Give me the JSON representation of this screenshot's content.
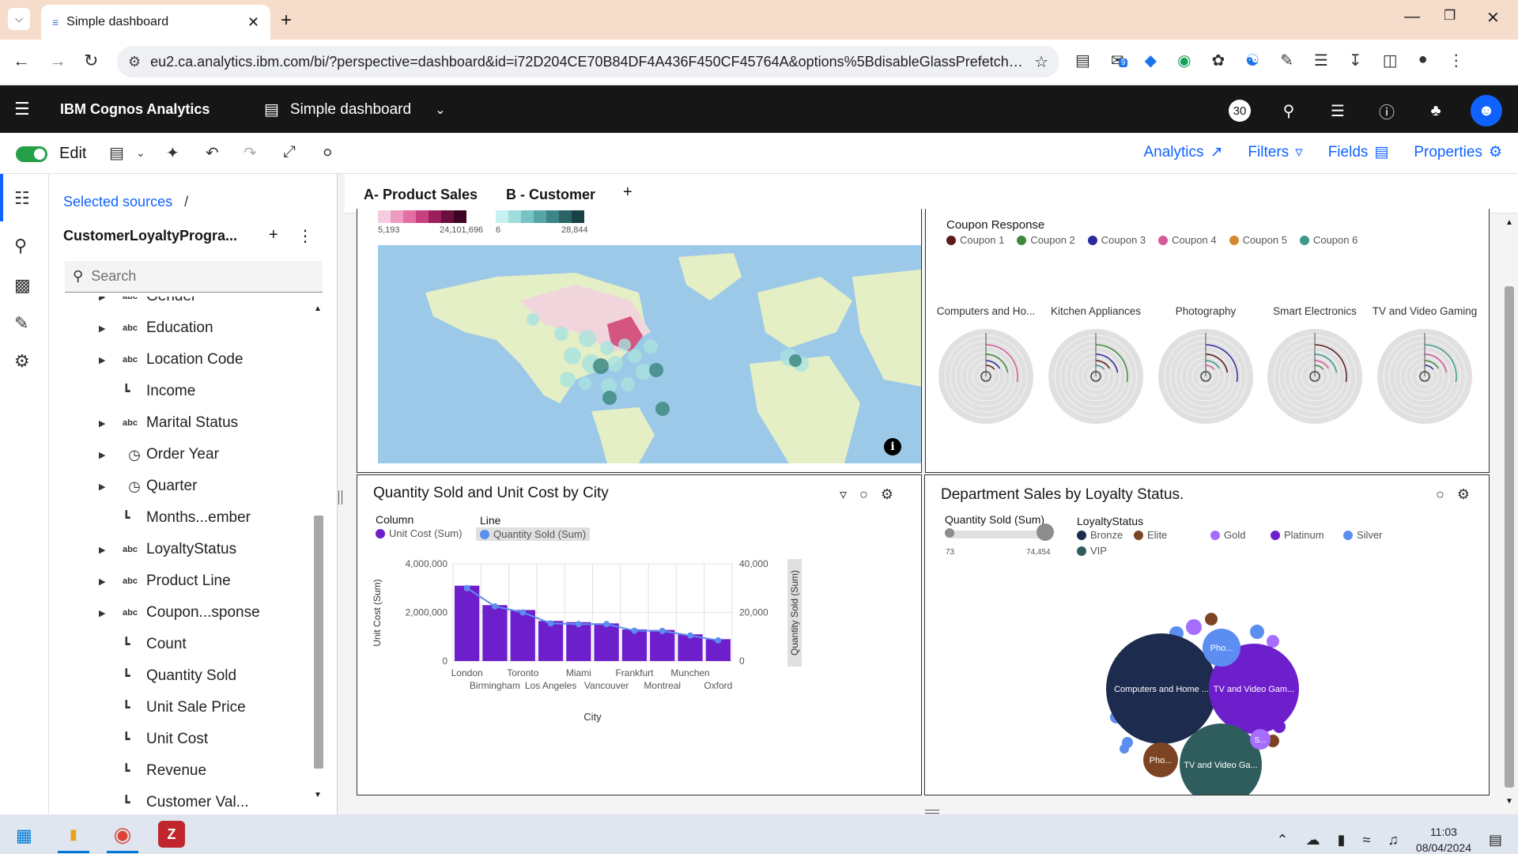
{
  "browser": {
    "tab_title": "Simple dashboard",
    "url": "eu2.ca.analytics.ibm.com/bi/?perspective=dashboard&id=i72D204CE70B84DF4A436F450CF45764A&options%5BdisableGlassPrefetch%5D=t...",
    "ext_badge": "9"
  },
  "app": {
    "product_name": "IBM Cognos Analytics",
    "dashboard_title": "Simple dashboard",
    "notification_count": "30"
  },
  "toolbar": {
    "edit_label": "Edit",
    "analytics": "Analytics",
    "filters": "Filters",
    "fields": "Fields",
    "properties": "Properties"
  },
  "data_panel": {
    "breadcrumb": "Selected sources",
    "breadcrumb_sep": "/",
    "source_name": "CustomerLoyaltyProgra...",
    "search_placeholder": "Search",
    "items": [
      {
        "label": "Gender",
        "type": "abc",
        "expandable": true
      },
      {
        "label": "Education",
        "type": "abc",
        "expandable": true
      },
      {
        "label": "Location Code",
        "type": "abc",
        "expandable": true
      },
      {
        "label": "Income",
        "type": "measure",
        "expandable": false
      },
      {
        "label": "Marital Status",
        "type": "abc",
        "expandable": true
      },
      {
        "label": "Order Year",
        "type": "clock",
        "expandable": true
      },
      {
        "label": "Quarter",
        "type": "clock",
        "expandable": true
      },
      {
        "label": "Months...ember",
        "type": "measure",
        "expandable": false
      },
      {
        "label": "LoyaltyStatus",
        "type": "abc",
        "expandable": true
      },
      {
        "label": "Product Line",
        "type": "abc",
        "expandable": true
      },
      {
        "label": "Coupon...sponse",
        "type": "abc",
        "expandable": true
      },
      {
        "label": "Count",
        "type": "measure",
        "expandable": false
      },
      {
        "label": "Quantity Sold",
        "type": "measure",
        "expandable": false
      },
      {
        "label": "Unit Sale Price",
        "type": "measure",
        "expandable": false
      },
      {
        "label": "Unit Cost",
        "type": "measure",
        "expandable": false
      },
      {
        "label": "Revenue",
        "type": "measure",
        "expandable": false
      },
      {
        "label": "Customer Val...",
        "type": "measure",
        "expandable": false
      }
    ]
  },
  "dashboard_tabs": {
    "tab_a": "A- Product Sales",
    "tab_b": "B - Customer",
    "add": "+"
  },
  "map_widget": {
    "legend1_min": "5,193",
    "legend1_max": "24,101,696",
    "legend2_min": "6",
    "legend2_max": "28,844",
    "legend1_colors": [
      "#f6cde0",
      "#ef9cc2",
      "#e26ea3",
      "#c9407f",
      "#9c1f5d",
      "#6b0f3e",
      "#3d0424"
    ],
    "legend2_colors": [
      "#c8f0f0",
      "#a0dcdc",
      "#78c4c4",
      "#56a6a8",
      "#3d8587",
      "#2a6466",
      "#1a4244"
    ],
    "info": "i"
  },
  "coupon_widget": {
    "title": "Coupon Response",
    "legend": [
      {
        "label": "Coupon 1",
        "color": "#5c1a1a"
      },
      {
        "label": "Coupon 2",
        "color": "#3f8a3f"
      },
      {
        "label": "Coupon 3",
        "color": "#2b2b9e"
      },
      {
        "label": "Coupon 4",
        "color": "#d45a9a"
      },
      {
        "label": "Coupon 5",
        "color": "#d48a2a"
      },
      {
        "label": "Coupon 6",
        "color": "#3d9a8a"
      }
    ],
    "categories": [
      "Computers and Ho...",
      "Kitchen Appliances",
      "Photography",
      "Smart Electronics",
      "TV and Video Gaming"
    ]
  },
  "bar_widget": {
    "title": "Quantity Sold and Unit Cost by City",
    "legend_column": "Column",
    "legend_column_item": "Unit Cost (Sum)",
    "legend_line": "Line",
    "legend_line_item": "Quantity Sold (Sum)",
    "column_color": "#6e1fcc",
    "line_color": "#5b8ef0"
  },
  "chart_data": {
    "type": "bar",
    "title": "Quantity Sold and Unit Cost by City",
    "xlabel": "City",
    "ylabel": "Unit Cost (Sum)",
    "y2label": "Quantity Sold (Sum)",
    "ylim": [
      0,
      4000000
    ],
    "y2lim": [
      0,
      40000
    ],
    "yticks": [
      "4,000,000",
      "2,000,000",
      "0"
    ],
    "y2ticks": [
      "40,000",
      "20,000",
      "0"
    ],
    "categories": [
      "London",
      "Birmingham",
      "Toronto",
      "Los Angeles",
      "Miami",
      "Vancouver",
      "Frankfurt",
      "Montreal",
      "Munchen",
      "Oxford"
    ],
    "series": [
      {
        "name": "Unit Cost (Sum)",
        "kind": "column",
        "values": [
          3100000,
          2300000,
          2100000,
          1650000,
          1600000,
          1550000,
          1300000,
          1280000,
          1100000,
          900000
        ]
      },
      {
        "name": "Quantity Sold (Sum)",
        "kind": "line",
        "values": [
          30000,
          22500,
          20000,
          15500,
          15200,
          15200,
          12500,
          12400,
          10500,
          8500
        ]
      }
    ]
  },
  "bubble_widget": {
    "title": "Department Sales by Loyalty Status.",
    "slider_label": "Quantity Sold (Sum)",
    "slider_min": "73",
    "slider_max": "74,454",
    "legend_title": "LoyaltyStatus",
    "legend": [
      {
        "label": "Bronze",
        "color": "#1d2b4f"
      },
      {
        "label": "Elite",
        "color": "#7d4424"
      },
      {
        "label": "Gold",
        "color": "#a56eff"
      },
      {
        "label": "Platinum",
        "color": "#6e1fcc"
      },
      {
        "label": "Silver",
        "color": "#5b8ef0"
      },
      {
        "label": "VIP",
        "color": "#2f5d5d"
      }
    ],
    "bubble_labels": [
      "Computers and Home ...",
      "TV and Video Gam...",
      "Pho...",
      "TV and Video Ga...",
      "Pho...",
      "S..."
    ]
  },
  "taskbar": {
    "time": "11:03",
    "date": "08/04/2024"
  }
}
